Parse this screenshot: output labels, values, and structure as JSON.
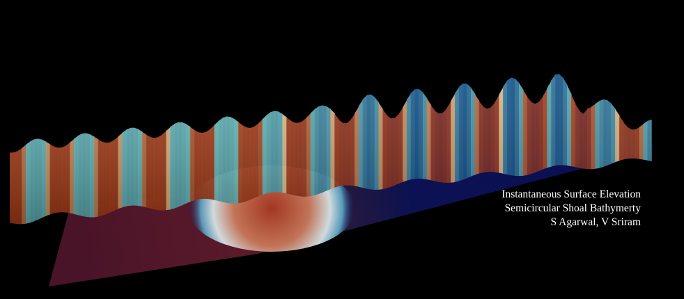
{
  "caption": {
    "line1": "Instantaneous Surface Elevation",
    "line2": "Semicircular Shoal Bathymerty",
    "line3": "S Agarwal, V Sriram"
  },
  "colors": {
    "background": "#000000",
    "bed_deep": "#0a1050",
    "bed_shallow": "#4a1428",
    "wave_crest": "#a83a14",
    "wave_trough": "#0a4e8a",
    "wave_mid": "#e8c892"
  }
}
